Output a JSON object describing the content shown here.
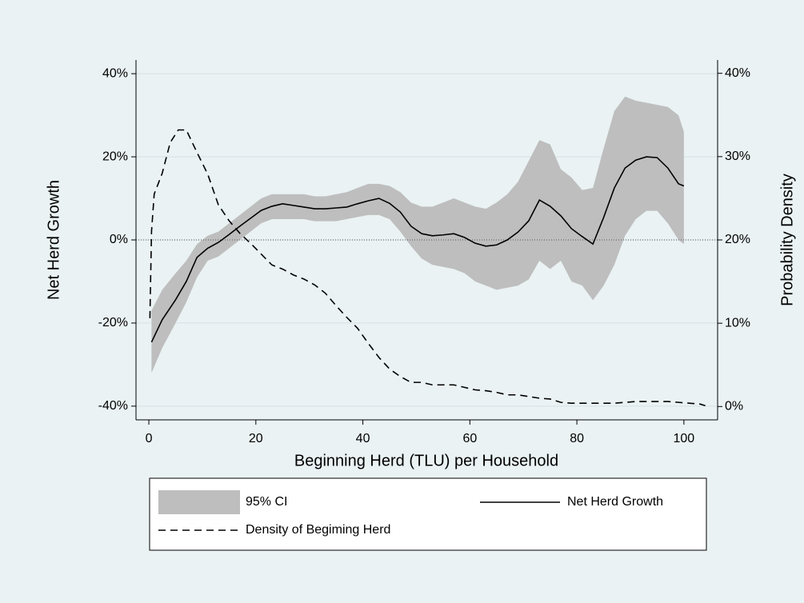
{
  "chart_data": {
    "type": "line",
    "x_label": "Beginning Herd (TLU) per Household",
    "y_label": "Net Herd Growth",
    "y2_label": "Probability Density",
    "xlim": [
      -2.4,
      106.3
    ],
    "xticks": [
      0,
      20,
      40,
      60,
      80,
      100
    ],
    "ylim": [
      -43.3,
      43.3
    ],
    "yticks": [
      {
        "value": -40,
        "label": "-40%"
      },
      {
        "value": -20,
        "label": "-20%"
      },
      {
        "value": 0,
        "label": "0%"
      },
      {
        "value": 20,
        "label": "20%"
      },
      {
        "value": 40,
        "label": "40%"
      }
    ],
    "y2lim": [
      -1.6,
      41.6
    ],
    "y2ticks": [
      {
        "value": 0,
        "label": "0%"
      },
      {
        "value": 10,
        "label": "10%"
      },
      {
        "value": 20,
        "label": "20%"
      },
      {
        "value": 30,
        "label": "30%"
      },
      {
        "value": 40,
        "label": "40%"
      }
    ],
    "grid": true,
    "reference_line": 0,
    "legend": "bottom",
    "series": [
      {
        "name": "95% CI",
        "color": "#bebebe",
        "type": "band",
        "x": [
          0.5,
          2.5,
          5,
          7,
          9,
          11,
          13,
          15,
          17,
          19,
          21,
          23,
          25,
          27,
          29,
          31,
          33,
          35,
          37,
          39,
          41,
          43,
          45,
          47,
          49,
          51,
          53,
          55,
          57,
          59,
          61,
          63,
          65,
          67,
          69,
          71,
          73,
          75,
          77,
          79,
          81,
          83,
          85,
          87,
          89,
          91,
          93,
          95,
          97,
          99,
          100
        ],
        "upper": [
          -17,
          -12,
          -8,
          -5,
          -1,
          1,
          2,
          4,
          6,
          8,
          10,
          11,
          11,
          11,
          11,
          10.5,
          10.5,
          11,
          11.5,
          12.5,
          13.5,
          13.5,
          13,
          11.5,
          9,
          8,
          8,
          9,
          10,
          9,
          8,
          7.5,
          9,
          11,
          14,
          19,
          24,
          23,
          17,
          15,
          12,
          12.5,
          22,
          31,
          34.5,
          33.5,
          33,
          32.5,
          32,
          30,
          26
        ],
        "lower": [
          -32,
          -26,
          -20,
          -15,
          -9,
          -5,
          -4,
          -2,
          0,
          2,
          4,
          5,
          5,
          5,
          5,
          4.5,
          4.5,
          4.5,
          5,
          5.5,
          6,
          6,
          5,
          2,
          -1.5,
          -4.5,
          -6,
          -6.5,
          -7,
          -8,
          -10,
          -11,
          -12,
          -11.5,
          -11,
          -9.5,
          -5,
          -7,
          -5,
          -10,
          -11,
          -14.5,
          -11,
          -6,
          1,
          5,
          7,
          7,
          4,
          0,
          -1
        ]
      },
      {
        "name": "Net Herd Growth",
        "color": "#000000",
        "dash": "none",
        "x": [
          0.5,
          2.5,
          5,
          7,
          9,
          11,
          13,
          15,
          17,
          19,
          21,
          23,
          25,
          27,
          29,
          31,
          33,
          35,
          37,
          39,
          41,
          43,
          45,
          47,
          49,
          51,
          53,
          55,
          57,
          59,
          61,
          63,
          65,
          67,
          69,
          71,
          73,
          75,
          77,
          79,
          81,
          83,
          85,
          87,
          89,
          91,
          93,
          95,
          97,
          99,
          100
        ],
        "values": [
          -24.6,
          -19.2,
          -14.4,
          -10,
          -4.2,
          -2,
          -0.6,
          1.3,
          3.3,
          5.2,
          7.1,
          8.1,
          8.7,
          8.3,
          7.9,
          7.5,
          7.5,
          7.7,
          7.9,
          8.7,
          9.4,
          10,
          8.8,
          6.7,
          3.3,
          1.5,
          1,
          1.2,
          1.5,
          0.6,
          -0.8,
          -1.5,
          -1.2,
          0,
          1.9,
          4.6,
          9.6,
          8.1,
          5.8,
          2.7,
          0.8,
          -1,
          5.4,
          12.5,
          17.3,
          19.2,
          20,
          19.8,
          17.3,
          13.5,
          13
        ]
      },
      {
        "name": "Density of Begiming Herd",
        "color": "#000000",
        "dash": "9,6",
        "axis": "y2",
        "x": [
          0.2,
          0.5,
          1,
          2.5,
          4,
          5.5,
          7,
          9,
          11,
          13,
          15,
          17,
          19,
          21,
          23,
          25,
          27,
          29,
          31,
          33,
          35,
          37,
          39,
          41,
          43,
          45,
          47,
          49,
          51,
          53,
          55,
          57,
          59,
          61,
          63,
          65,
          67,
          69,
          71,
          73,
          75,
          77,
          79,
          81,
          83,
          85,
          87,
          89,
          91,
          93,
          95,
          97,
          99,
          101,
          103,
          104
        ],
        "values": [
          10.6,
          21,
          25.5,
          28,
          31.7,
          33.2,
          33.2,
          30.5,
          27.9,
          24.2,
          22.3,
          20.8,
          19.6,
          18.3,
          17,
          16.5,
          15.8,
          15.3,
          14.6,
          13.6,
          12.1,
          10.7,
          9.4,
          7.6,
          5.9,
          4.5,
          3.6,
          2.9,
          2.9,
          2.6,
          2.6,
          2.6,
          2.3,
          2,
          1.9,
          1.7,
          1.4,
          1.4,
          1.2,
          1,
          0.9,
          0.5,
          0.4,
          0.4,
          0.4,
          0.4,
          0.4,
          0.5,
          0.6,
          0.6,
          0.6,
          0.6,
          0.5,
          0.4,
          0.3,
          0.1
        ]
      }
    ]
  }
}
